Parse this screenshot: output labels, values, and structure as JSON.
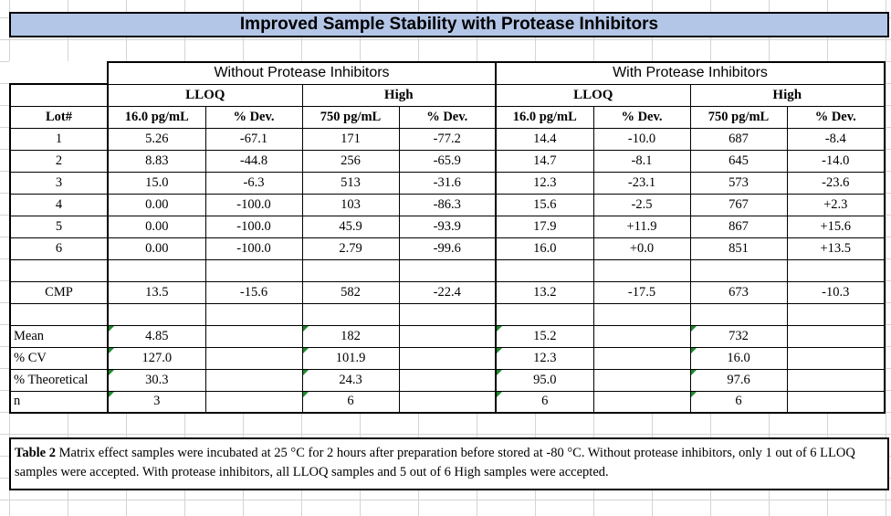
{
  "title": "Improved Sample Stability with Protease Inhibitors",
  "groups": {
    "without": "Without Protease Inhibitors",
    "with": "With Protease Inhibitors"
  },
  "subgroups": {
    "lloq": "LLOQ",
    "high": "High"
  },
  "columns": [
    "Lot#",
    "16.0 pg/mL",
    "% Dev.",
    "750 pg/mL",
    "% Dev.",
    "16.0 pg/mL",
    "% Dev.",
    "750 pg/mL",
    "% Dev."
  ],
  "rows": [
    [
      "1",
      "5.26",
      "-67.1",
      "171",
      "-77.2",
      "14.4",
      "-10.0",
      "687",
      "-8.4"
    ],
    [
      "2",
      "8.83",
      "-44.8",
      "256",
      "-65.9",
      "14.7",
      "-8.1",
      "645",
      "-14.0"
    ],
    [
      "3",
      "15.0",
      "-6.3",
      "513",
      "-31.6",
      "12.3",
      "-23.1",
      "573",
      "-23.6"
    ],
    [
      "4",
      "0.00",
      "-100.0",
      "103",
      "-86.3",
      "15.6",
      "-2.5",
      "767",
      "+2.3"
    ],
    [
      "5",
      "0.00",
      "-100.0",
      "45.9",
      "-93.9",
      "17.9",
      "+11.9",
      "867",
      "+15.6"
    ],
    [
      "6",
      "0.00",
      "-100.0",
      "2.79",
      "-99.6",
      "16.0",
      "+0.0",
      "851",
      "+13.5"
    ]
  ],
  "cmp": [
    "CMP",
    "13.5",
    "-15.6",
    "582",
    "-22.4",
    "13.2",
    "-17.5",
    "673",
    "-10.3"
  ],
  "stats": [
    [
      "Mean",
      "4.85",
      "182",
      "15.2",
      "732"
    ],
    [
      "% CV",
      "127.0",
      "101.9",
      "12.3",
      "16.0"
    ],
    [
      "% Theoretical",
      "30.3",
      "24.3",
      "95.0",
      "97.6"
    ],
    [
      "n",
      "3",
      "6",
      "6",
      "6"
    ]
  ],
  "caption": {
    "label": "Table 2",
    "text": " Matrix effect samples were incubated at 25 °C for 2 hours after preparation before stored at -80 °C. Without protease inhibitors, only 1 out of 6 LLOQ samples were accepted. With protease inhibitors, all LLOQ samples and 5 out of 6 High samples were accepted."
  },
  "colors": {
    "title_fill": "#b4c6e7",
    "grid": "#d4d4d4",
    "error_triangle": "#1b8a2e"
  }
}
